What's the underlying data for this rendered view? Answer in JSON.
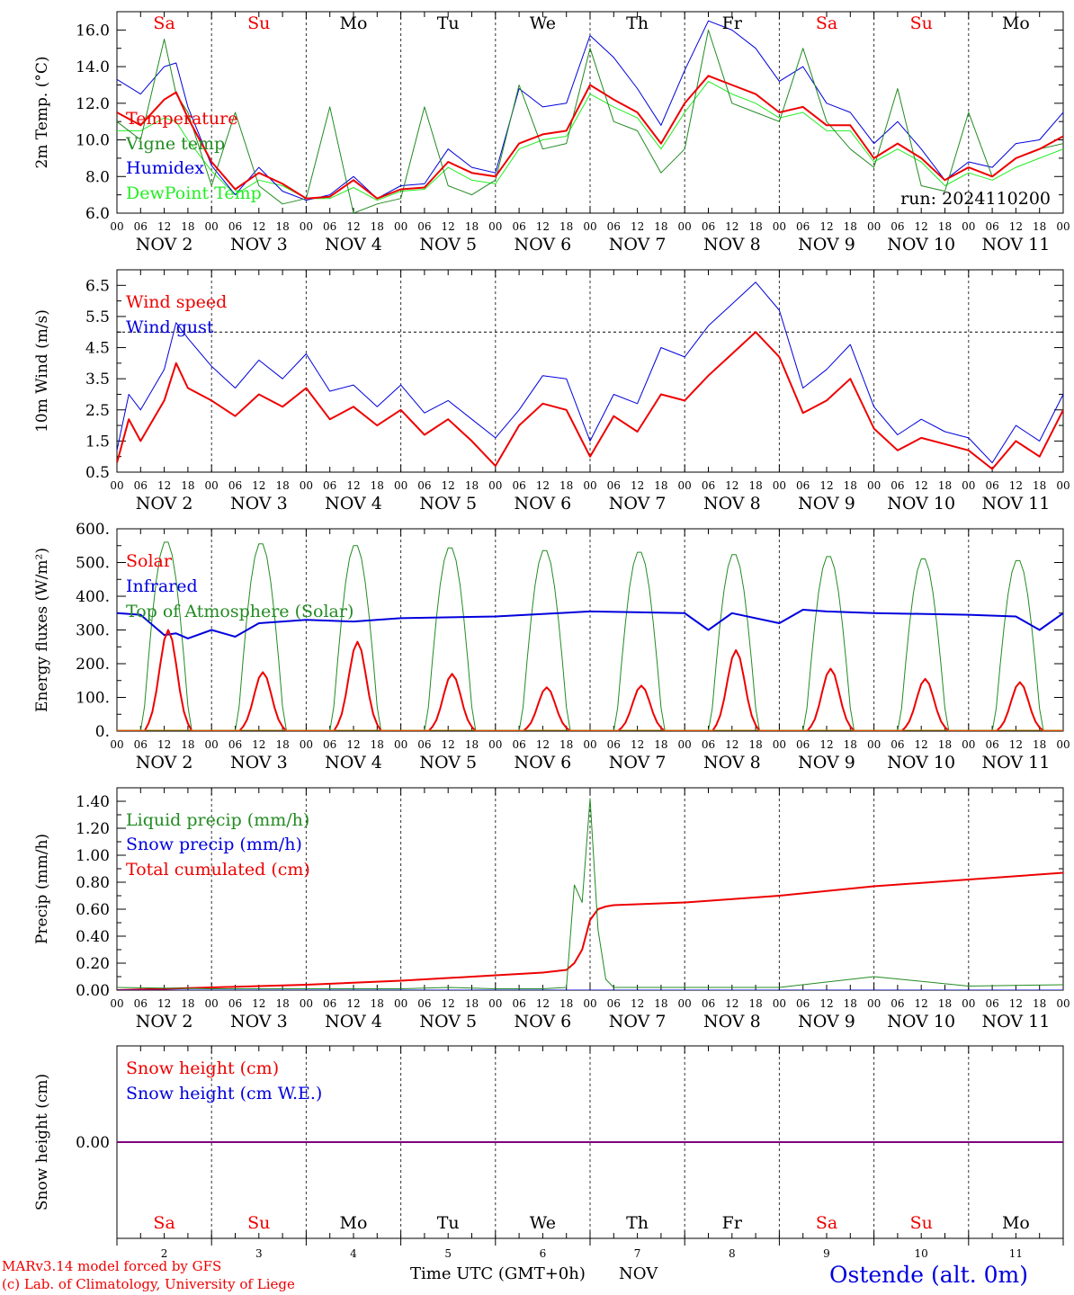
{
  "meta": {
    "run": "run: 2024110200",
    "xlabel": "Time UTC (GMT+0h)",
    "month": "NOV",
    "model_line": "MARv3.14 model forced by GFS",
    "copyright": "(c) Lab. of Climatology, University of Liege",
    "station": "Ostende (alt. 0m)"
  },
  "colors": {
    "red": "#ee0000",
    "green": "#228b22",
    "blue": "#0000dd",
    "light_green": "#22ee22",
    "purple": "#800080",
    "grid": "#333333"
  },
  "days": {
    "names": [
      "Sa",
      "Su",
      "Mo",
      "Tu",
      "We",
      "Th",
      "Fr",
      "Sa",
      "Su",
      "Mo"
    ],
    "weekend": [
      true,
      true,
      false,
      false,
      false,
      false,
      false,
      true,
      true,
      false
    ],
    "dates": [
      "NOV  2",
      "NOV  3",
      "NOV  4",
      "NOV  5",
      "NOV  6",
      "NOV  7",
      "NOV  8",
      "NOV  9",
      "NOV 10",
      "NOV 11"
    ],
    "numbers": [
      "2",
      "3",
      "4",
      "5",
      "6",
      "7",
      "8",
      "9",
      "10",
      "11"
    ],
    "hour_ticks": [
      "00",
      "06",
      "12",
      "18"
    ],
    "end_tick": "00"
  },
  "chart_data": [
    {
      "id": "temp",
      "type": "line",
      "ylabel": "2m Temp. (°C)",
      "ylim": [
        6.0,
        17.0
      ],
      "yticks": [
        "6.0",
        "8.0",
        "10.0",
        "12.0",
        "14.0",
        "16.0"
      ],
      "ytick_values": [
        6,
        8,
        10,
        12,
        14,
        16
      ],
      "x": [
        0,
        6,
        12,
        15,
        18,
        24,
        30,
        36,
        42,
        48,
        54,
        60,
        66,
        72,
        78,
        84,
        90,
        96,
        102,
        108,
        114,
        120,
        126,
        132,
        138,
        144,
        150,
        156,
        162,
        168,
        174,
        180,
        186,
        192,
        198,
        204,
        210,
        216,
        222,
        228,
        234,
        240
      ],
      "series": [
        {
          "name": "Temperature",
          "color": "#ee0000",
          "width": 2,
          "values": [
            11.5,
            10.8,
            12.2,
            12.6,
            11.2,
            8.8,
            7.3,
            8.2,
            7.6,
            6.8,
            6.9,
            7.8,
            6.8,
            7.3,
            7.4,
            8.8,
            8.2,
            8.0,
            9.8,
            10.3,
            10.5,
            13.0,
            12.2,
            11.5,
            9.8,
            12.0,
            13.5,
            13.0,
            12.5,
            11.5,
            11.8,
            10.8,
            10.8,
            9.0,
            9.8,
            9.0,
            7.8,
            8.5,
            8.0,
            9.0,
            9.5,
            10.2
          ]
        },
        {
          "name": "Vigne temp",
          "color": "#228b22",
          "width": 1,
          "values": [
            11.0,
            10.0,
            15.5,
            12.5,
            11.5,
            7.5,
            11.5,
            7.5,
            6.5,
            6.8,
            11.8,
            6.0,
            6.5,
            6.8,
            11.8,
            7.5,
            7.0,
            7.8,
            13.0,
            9.5,
            9.8,
            15.0,
            11.0,
            10.5,
            8.2,
            9.5,
            16.0,
            12.0,
            11.5,
            11.0,
            15.0,
            11.0,
            9.5,
            8.5,
            12.8,
            7.5,
            7.2,
            11.5,
            8.0,
            9.0,
            9.5,
            9.8
          ]
        },
        {
          "name": "Humidex",
          "color": "#0000dd",
          "width": 1,
          "values": [
            13.3,
            12.5,
            14.0,
            14.2,
            11.8,
            8.6,
            7.0,
            8.5,
            7.2,
            6.7,
            7.0,
            8.0,
            6.8,
            7.5,
            7.6,
            9.5,
            8.5,
            8.2,
            12.8,
            11.8,
            12.0,
            15.7,
            14.5,
            12.8,
            10.8,
            13.8,
            16.5,
            16.0,
            15.0,
            13.2,
            14.0,
            12.0,
            11.5,
            9.8,
            11.0,
            9.5,
            7.8,
            8.8,
            8.5,
            9.8,
            10.0,
            11.5
          ]
        },
        {
          "name": "DewPoint Temp",
          "color": "#22ee22",
          "width": 1,
          "values": [
            10.5,
            10.5,
            11.2,
            11.0,
            10.0,
            8.3,
            7.0,
            7.8,
            7.5,
            6.8,
            6.8,
            7.4,
            6.7,
            7.2,
            7.3,
            8.5,
            7.8,
            7.6,
            9.5,
            10.0,
            10.2,
            12.5,
            11.8,
            11.2,
            9.5,
            11.5,
            13.2,
            12.5,
            12.0,
            11.2,
            11.5,
            10.5,
            10.5,
            8.8,
            9.5,
            8.8,
            7.5,
            8.2,
            7.8,
            8.5,
            9.0,
            9.5
          ]
        }
      ]
    },
    {
      "id": "wind",
      "type": "line",
      "ylabel": "10m Wind (m/s)",
      "ylim": [
        0.5,
        7.0
      ],
      "yticks": [
        "0.5",
        "1.5",
        "2.5",
        "3.5",
        "4.5",
        "5.5",
        "6.5"
      ],
      "ytick_values": [
        0.5,
        1.5,
        2.5,
        3.5,
        4.5,
        5.5,
        6.5
      ],
      "reference_line": 5.0,
      "x": [
        0,
        3,
        6,
        12,
        15,
        18,
        24,
        30,
        36,
        42,
        48,
        54,
        60,
        66,
        72,
        78,
        84,
        90,
        96,
        102,
        108,
        114,
        120,
        126,
        132,
        138,
        144,
        150,
        156,
        162,
        168,
        174,
        180,
        186,
        192,
        198,
        204,
        210,
        216,
        222,
        228,
        234,
        240
      ],
      "series": [
        {
          "name": "Wind speed",
          "color": "#ee0000",
          "width": 2,
          "values": [
            0.8,
            2.2,
            1.5,
            2.8,
            4.0,
            3.2,
            2.8,
            2.3,
            3.0,
            2.6,
            3.2,
            2.2,
            2.6,
            2.0,
            2.5,
            1.7,
            2.2,
            1.5,
            0.7,
            2.0,
            2.7,
            2.5,
            1.0,
            2.3,
            1.8,
            3.0,
            2.8,
            3.6,
            4.3,
            5.0,
            4.2,
            2.4,
            2.8,
            3.5,
            1.9,
            1.2,
            1.6,
            1.4,
            1.2,
            0.6,
            1.5,
            1.0,
            2.5
          ]
        },
        {
          "name": "Wind gust",
          "color": "#0000dd",
          "width": 1,
          "values": [
            1.2,
            3.0,
            2.5,
            3.8,
            5.3,
            4.8,
            3.9,
            3.2,
            4.1,
            3.5,
            4.3,
            3.1,
            3.3,
            2.6,
            3.3,
            2.4,
            2.8,
            2.2,
            1.6,
            2.5,
            3.6,
            3.5,
            1.5,
            3.0,
            2.7,
            4.5,
            4.2,
            5.2,
            5.9,
            6.6,
            5.7,
            3.2,
            3.8,
            4.6,
            2.6,
            1.7,
            2.2,
            1.8,
            1.6,
            0.8,
            2.0,
            1.5,
            3.0
          ]
        }
      ]
    },
    {
      "id": "energy",
      "type": "line",
      "ylabel": "Energy fluxes (W/m²)",
      "ylim": [
        0,
        600
      ],
      "yticks": [
        "0.",
        "100.",
        "200.",
        "300.",
        "400.",
        "500.",
        "600."
      ],
      "ytick_values": [
        0,
        100,
        200,
        300,
        400,
        500,
        600
      ],
      "toa_peaks": [
        565,
        560,
        555,
        548,
        540,
        535,
        528,
        522,
        515,
        510
      ],
      "solar_peaks": [
        300,
        175,
        265,
        170,
        130,
        135,
        240,
        185,
        155,
        145
      ],
      "infrared": {
        "x": [
          0,
          6,
          12,
          15,
          18,
          24,
          30,
          36,
          48,
          60,
          72,
          96,
          120,
          144,
          150,
          156,
          168,
          174,
          180,
          192,
          216,
          228,
          234,
          240
        ],
        "values": [
          350,
          345,
          285,
          290,
          275,
          300,
          280,
          320,
          330,
          325,
          335,
          340,
          355,
          350,
          300,
          350,
          320,
          360,
          355,
          350,
          345,
          340,
          300,
          350
        ]
      },
      "series": [
        {
          "name": "Solar",
          "color": "#ee0000",
          "width": 2
        },
        {
          "name": "Infrared",
          "color": "#0000dd",
          "width": 2
        },
        {
          "name": "Top of Atmosphere (Solar)",
          "color": "#228b22",
          "width": 1
        }
      ]
    },
    {
      "id": "precip",
      "type": "line",
      "ylabel": "Precip (mm/h)",
      "ylim": [
        0,
        1.5
      ],
      "yticks": [
        "0.00",
        "0.20",
        "0.40",
        "0.60",
        "0.80",
        "1.00",
        "1.20",
        "1.40"
      ],
      "ytick_values": [
        0,
        0.2,
        0.4,
        0.6,
        0.8,
        1.0,
        1.2,
        1.4
      ],
      "x": [
        0,
        24,
        48,
        72,
        84,
        96,
        108,
        114,
        116,
        118,
        120,
        122,
        124,
        126,
        144,
        168,
        192,
        216,
        240
      ],
      "series": [
        {
          "name": "Liquid precip (mm/h)",
          "color": "#228b22",
          "width": 1,
          "values": [
            0.02,
            0.01,
            0.01,
            0.01,
            0.02,
            0.01,
            0.01,
            0.02,
            0.78,
            0.65,
            1.42,
            0.45,
            0.08,
            0.02,
            0.02,
            0.02,
            0.1,
            0.03,
            0.04
          ]
        },
        {
          "name": "Snow precip (mm/h)",
          "color": "#0000dd",
          "width": 1,
          "values": [
            0,
            0,
            0,
            0,
            0,
            0,
            0,
            0,
            0,
            0,
            0,
            0,
            0,
            0,
            0,
            0,
            0,
            0,
            0
          ]
        },
        {
          "name": "Total cumulated (cm)",
          "color": "#ee0000",
          "width": 2,
          "values": [
            0.0,
            0.02,
            0.04,
            0.07,
            0.09,
            0.11,
            0.13,
            0.15,
            0.2,
            0.3,
            0.52,
            0.6,
            0.62,
            0.63,
            0.65,
            0.7,
            0.77,
            0.82,
            0.87
          ]
        }
      ]
    },
    {
      "id": "snow",
      "type": "line",
      "ylabel": "Snow height (cm)",
      "ylim": [
        -1,
        1
      ],
      "yticks": [
        "0.00"
      ],
      "ytick_values": [
        0
      ],
      "x": [
        0,
        240
      ],
      "series": [
        {
          "name": "Snow height (cm)",
          "color": "#ee0000",
          "width": 2,
          "values": [
            0,
            0
          ]
        },
        {
          "name": "Snow height (cm W.E.)",
          "color": "#0000dd",
          "width": 2,
          "values": [
            0,
            0
          ]
        }
      ]
    }
  ]
}
